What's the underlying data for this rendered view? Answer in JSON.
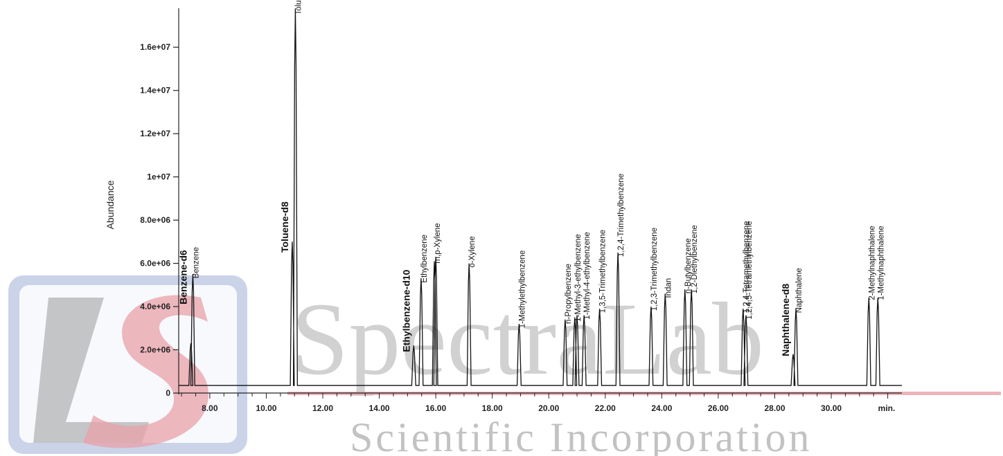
{
  "chart_data": {
    "type": "line",
    "title": "",
    "xlabel": "",
    "ylabel": "Abundance",
    "x_unit_label": "min.",
    "xlim": [
      6.9,
      32.5
    ],
    "ylim": [
      0,
      17800000
    ],
    "baseline": 350000,
    "grid": false,
    "legend": "none",
    "x_ticks": [
      {
        "v": 8,
        "label": "8.00"
      },
      {
        "v": 10,
        "label": "10.00"
      },
      {
        "v": 12,
        "label": "12.00"
      },
      {
        "v": 14,
        "label": "14.00"
      },
      {
        "v": 16,
        "label": "16.00"
      },
      {
        "v": 18,
        "label": "18.00"
      },
      {
        "v": 20,
        "label": "20.00"
      },
      {
        "v": 22,
        "label": "22.00"
      },
      {
        "v": 24,
        "label": "24.00"
      },
      {
        "v": 26,
        "label": "26.00"
      },
      {
        "v": 28,
        "label": "28.00"
      },
      {
        "v": 30,
        "label": "30.00"
      }
    ],
    "y_ticks": [
      {
        "v": 0,
        "label": "0"
      },
      {
        "v": 2000000,
        "label": "2.0e+06"
      },
      {
        "v": 4000000,
        "label": "4.0e+06"
      },
      {
        "v": 6000000,
        "label": "6.0e+06"
      },
      {
        "v": 8000000,
        "label": "8.0e+06"
      },
      {
        "v": 10000000,
        "label": "1e+07"
      },
      {
        "v": 12000000,
        "label": "1.2e+07"
      },
      {
        "v": 14000000,
        "label": "1.4e+07"
      },
      {
        "v": 16000000,
        "label": "1.6e+07"
      }
    ],
    "peaks": [
      {
        "t": 7.33,
        "h": 2300000,
        "label": "Benzene-d6",
        "bold": true,
        "ly": 4100000
      },
      {
        "t": 7.4,
        "h": 5500000,
        "label": "Benzene",
        "bold": false,
        "ly": 5300000
      },
      {
        "t": 10.92,
        "h": 7000000,
        "label": "Toluene-d8",
        "bold": true,
        "ly": 6500000
      },
      {
        "t": 11.03,
        "h": 17800000,
        "label": "Toluene",
        "bold": false,
        "ly": 17500000
      },
      {
        "t": 15.22,
        "h": 2200000,
        "label": "Ethylbenzene-d10",
        "bold": true,
        "ly": 1900000
      },
      {
        "t": 15.48,
        "h": 5300000,
        "label": "Ethylbenzene",
        "bold": false,
        "ly": 5100000
      },
      {
        "t": 15.95,
        "h": 6100000,
        "label": "m,p-Xylene",
        "bold": false,
        "ly": 6000000
      },
      {
        "t": 16.0,
        "h": 6300000,
        "label": "",
        "bold": false,
        "ly": 6200000
      },
      {
        "t": 17.18,
        "h": 6000000,
        "label": "o-Xylene",
        "bold": false,
        "ly": 5800000
      },
      {
        "t": 18.95,
        "h": 3200000,
        "label": "1-Methylethylbenzene",
        "bold": false,
        "ly": 3000000
      },
      {
        "t": 20.58,
        "h": 3400000,
        "label": "n-Propylbenzene",
        "bold": false,
        "ly": 3200000
      },
      {
        "t": 20.92,
        "h": 3500000,
        "label": "1-Methyl-3-ethylbenzene",
        "bold": false,
        "ly": 3300000
      },
      {
        "t": 21.0,
        "h": 3600000,
        "label": "",
        "bold": false,
        "ly": 3400000
      },
      {
        "t": 21.25,
        "h": 3600000,
        "label": "1-Methyl-4-ethylbenzene",
        "bold": false,
        "ly": 3400000
      },
      {
        "t": 21.8,
        "h": 3900000,
        "label": "1,3,5-Trimethylbenzene",
        "bold": false,
        "ly": 3700000
      },
      {
        "t": 22.45,
        "h": 6500000,
        "label": "1,2,4-Trimethylbenzene",
        "bold": false,
        "ly": 6300000
      },
      {
        "t": 23.62,
        "h": 4000000,
        "label": "1,2,3-Trimethylbenzene",
        "bold": false,
        "ly": 3800000
      },
      {
        "t": 24.12,
        "h": 4600000,
        "label": "Indan",
        "bold": false,
        "ly": 4400000
      },
      {
        "t": 24.82,
        "h": 4800000,
        "label": "n-Butylbenzene",
        "bold": false,
        "ly": 4600000
      },
      {
        "t": 25.05,
        "h": 4800000,
        "label": "1,2-Diethylbenzene",
        "bold": false,
        "ly": 4600000
      },
      {
        "t": 26.88,
        "h": 3900000,
        "label": "1,2,4-Tetramethylbenzene",
        "bold": false,
        "ly": 3700000
      },
      {
        "t": 26.98,
        "h": 3600000,
        "label": "1,2,4,5-Tetramethylbenzene",
        "bold": false,
        "ly": 3400000
      },
      {
        "t": 28.65,
        "h": 1800000,
        "label": "Naphthalene-d8",
        "bold": true,
        "ly": 1700000
      },
      {
        "t": 28.75,
        "h": 3900000,
        "label": "Naphthalene",
        "bold": false,
        "ly": 3700000
      },
      {
        "t": 31.33,
        "h": 4400000,
        "label": "2-Methylnaphthalene",
        "bold": false,
        "ly": 4300000
      },
      {
        "t": 31.65,
        "h": 4400000,
        "label": "1-Methylnaphthalene",
        "bold": false,
        "ly": 4300000
      }
    ]
  },
  "watermark": {
    "line1": "SpectraLab",
    "line2": "Scientific Incorporation",
    "logo_icon": "ls-logo-icon",
    "colors": {
      "red": "#e8a0a8",
      "blue": "#a8b8dc",
      "gray": "#9a9a9a"
    }
  }
}
